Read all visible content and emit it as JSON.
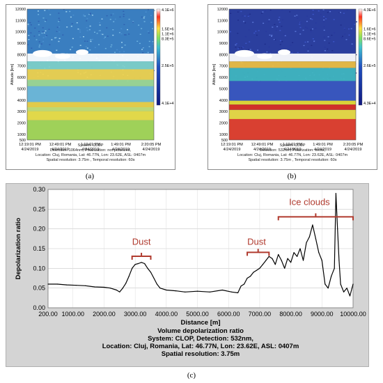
{
  "panel_a": {
    "caption": "(a)",
    "y_axis_label": "Altitude [km]",
    "y_ticks": [
      "12000",
      "11000",
      "10000",
      "9000",
      "8000",
      "7000",
      "6000",
      "5000",
      "4000",
      "3000",
      "2000",
      "1000",
      "500"
    ],
    "x_ticks": [
      {
        "time": "12:19:01 PM",
        "date": "4/24/2019"
      },
      {
        "time": "12:49:01 PM",
        "date": "4/24/2019"
      },
      {
        "time": "1:19:01 PM",
        "date": "4/24/2019"
      },
      {
        "time": "1:49:01 PM",
        "date": "4/24/2019"
      },
      {
        "time": "2:20:05 PM",
        "date": "4/24/2019"
      }
    ],
    "colorbar_labels": [
      "4.1E+6",
      "1.5E+6",
      "1.1E+6",
      "8.3E+5",
      "2.5E+5",
      "4.1E+4"
    ],
    "info_lines": [
      "System: CLOP",
      "Detection: 1064nm, Polarization: not-polarized,",
      "Location: Cluj, Romania, Lat: 46.77N, Lon: 23.62E, ASL: 0407m",
      "Spatial resolution: 3.75m , Temporal resolution: 60s"
    ]
  },
  "panel_b": {
    "caption": "(b)",
    "y_axis_label": "Altitude [km]",
    "y_ticks": [
      "12000",
      "11000",
      "10000",
      "9000",
      "8000",
      "7000",
      "6000",
      "5000",
      "4000",
      "3000",
      "2000",
      "1000",
      "500"
    ],
    "x_ticks": [
      {
        "time": "12:19:01 PM",
        "date": "4/24/2019"
      },
      {
        "time": "12:49:01 PM",
        "date": "4/24/2019"
      },
      {
        "time": "1:19:01 PM",
        "date": "4/24/2019"
      },
      {
        "time": "1:49:01 PM",
        "date": "4/24/2019"
      },
      {
        "time": "2:20:05 PM",
        "date": "4/24/2019"
      }
    ],
    "colorbar_labels": [
      "4.3E+6",
      "1.6E+6",
      "1.1E+6",
      "8.6E+5",
      "2.6E+5",
      "4.3E+4"
    ],
    "info_lines": [
      "System: CLOP",
      "Detection: 532nm, Polarization: cross,",
      "Location: Cluj, Romania, Lat: 46.77N, Lon: 23.62E, ASL: 0407m",
      "Spatial resolution: 3.75m , Temporal resolution: 60s"
    ]
  },
  "panel_c": {
    "caption": "(c)",
    "colors": {
      "background": "#d4d4d4",
      "plot_bg": "#ffffff",
      "line": "#000000",
      "bracket": "#b03a2e"
    },
    "info_lines": [
      "Volume depolarization ratio",
      "System: CLOP, Detection: 532nm,",
      "Location: Cluj, Romania, Lat: 46.77N, Lon: 23.62E, ASL: 0407m",
      "Spatial resolution: 3.75m"
    ]
  },
  "chart_data": {
    "type": "line",
    "xlabel": "Distance [m]",
    "ylabel": "Depolarization ratio",
    "xlim": [
      200,
      10000
    ],
    "ylim": [
      0,
      0.3
    ],
    "x_ticks": [
      "200.00",
      "1000.00",
      "2000.00",
      "3000.00",
      "4000.00",
      "5000.00",
      "6000.00",
      "7000.00",
      "8000.00",
      "9000.00",
      "10000.00"
    ],
    "y_ticks": [
      "0.00",
      "0.05",
      "0.10",
      "0.15",
      "0.20",
      "0.25",
      "0.30"
    ],
    "grid": true,
    "x": [
      200,
      500,
      800,
      1100,
      1400,
      1700,
      2000,
      2200,
      2400,
      2500,
      2600,
      2700,
      2800,
      2900,
      3000,
      3100,
      3200,
      3300,
      3400,
      3500,
      3600,
      3700,
      3800,
      4000,
      4300,
      4600,
      5000,
      5400,
      5800,
      6100,
      6300,
      6400,
      6500,
      6600,
      6700,
      6800,
      6900,
      7000,
      7100,
      7200,
      7300,
      7400,
      7500,
      7600,
      7700,
      7800,
      7900,
      8000,
      8100,
      8200,
      8300,
      8400,
      8500,
      8600,
      8700,
      8800,
      8900,
      9000,
      9100,
      9200,
      9300,
      9400,
      9450,
      9500,
      9550,
      9600,
      9700,
      9800,
      9900,
      10000
    ],
    "y": [
      0.06,
      0.06,
      0.058,
      0.057,
      0.056,
      0.053,
      0.052,
      0.05,
      0.045,
      0.04,
      0.05,
      0.062,
      0.08,
      0.1,
      0.11,
      0.112,
      0.115,
      0.112,
      0.1,
      0.09,
      0.075,
      0.06,
      0.05,
      0.045,
      0.043,
      0.04,
      0.042,
      0.04,
      0.045,
      0.04,
      0.038,
      0.055,
      0.06,
      0.075,
      0.08,
      0.09,
      0.095,
      0.1,
      0.11,
      0.12,
      0.13,
      0.125,
      0.11,
      0.135,
      0.12,
      0.1,
      0.125,
      0.115,
      0.14,
      0.13,
      0.15,
      0.12,
      0.165,
      0.18,
      0.21,
      0.175,
      0.14,
      0.12,
      0.06,
      0.05,
      0.08,
      0.1,
      0.29,
      0.2,
      0.12,
      0.06,
      0.04,
      0.05,
      0.03,
      0.06
    ],
    "annotations": [
      {
        "text": "Dust",
        "x": 3200,
        "y": 0.16
      },
      {
        "text": "Dust",
        "x": 6900,
        "y": 0.16
      },
      {
        "text": "Ice clouds",
        "x": 8600,
        "y": 0.26
      }
    ]
  }
}
